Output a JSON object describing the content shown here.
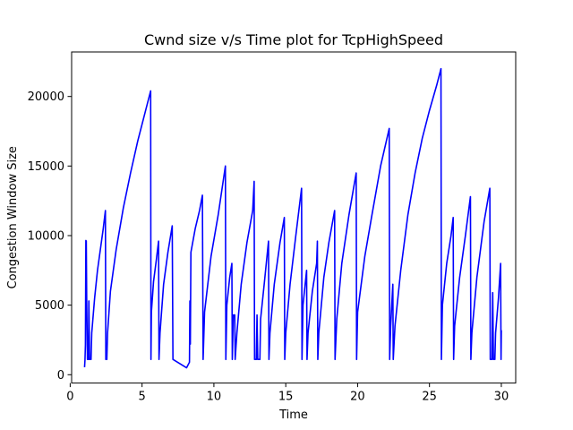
{
  "chart_data": {
    "type": "line",
    "title": "Cwnd size v/s Time plot for TcpHighSpeed",
    "xlabel": "Time",
    "ylabel": "Congestion Window Size",
    "xlim": [
      0.1,
      31.0
    ],
    "ylim": [
      -600,
      23200
    ],
    "xticks": [
      0,
      5,
      10,
      15,
      20,
      25,
      30
    ],
    "yticks": [
      0,
      5000,
      10000,
      15000,
      20000
    ],
    "grid": false,
    "series": [
      {
        "color": "#0000ff",
        "points": [
          [
            1.0,
            536
          ],
          [
            1.03,
            1072
          ],
          [
            1.06,
            2144
          ],
          [
            1.09,
            9650
          ],
          [
            1.12,
            9600
          ],
          [
            1.15,
            5300
          ],
          [
            1.2,
            1100
          ],
          [
            1.27,
            1100
          ],
          [
            1.3,
            5300
          ],
          [
            1.35,
            1100
          ],
          [
            1.45,
            1100
          ],
          [
            1.5,
            3000
          ],
          [
            1.7,
            5500
          ],
          [
            1.9,
            7500
          ],
          [
            2.1,
            9000
          ],
          [
            2.3,
            10500
          ],
          [
            2.45,
            11800
          ],
          [
            2.48,
            1100
          ],
          [
            2.55,
            1100
          ],
          [
            2.6,
            3000
          ],
          [
            2.8,
            6000
          ],
          [
            3.2,
            9000
          ],
          [
            3.7,
            12000
          ],
          [
            4.2,
            14500
          ],
          [
            4.7,
            16800
          ],
          [
            5.2,
            18800
          ],
          [
            5.6,
            20400
          ],
          [
            5.62,
            1100
          ],
          [
            5.65,
            4500
          ],
          [
            5.8,
            6700
          ],
          [
            6.0,
            8300
          ],
          [
            6.15,
            9600
          ],
          [
            6.18,
            1100
          ],
          [
            6.25,
            3000
          ],
          [
            6.5,
            6500
          ],
          [
            6.8,
            8800
          ],
          [
            7.1,
            10700
          ],
          [
            7.15,
            1100
          ],
          [
            8.1,
            500
          ],
          [
            8.3,
            900
          ],
          [
            8.33,
            5300
          ],
          [
            8.36,
            2200
          ],
          [
            8.4,
            8800
          ],
          [
            8.7,
            10500
          ],
          [
            9.0,
            11800
          ],
          [
            9.2,
            12900
          ],
          [
            9.25,
            1100
          ],
          [
            9.35,
            4500
          ],
          [
            9.8,
            8500
          ],
          [
            10.3,
            11500
          ],
          [
            10.8,
            15000
          ],
          [
            10.83,
            1100
          ],
          [
            10.9,
            5000
          ],
          [
            11.1,
            7000
          ],
          [
            11.25,
            8000
          ],
          [
            11.28,
            1100
          ],
          [
            11.35,
            4300
          ],
          [
            11.45,
            4300
          ],
          [
            11.48,
            1100
          ],
          [
            11.6,
            3000
          ],
          [
            11.9,
            6500
          ],
          [
            12.3,
            9500
          ],
          [
            12.7,
            11800
          ],
          [
            12.8,
            13900
          ],
          [
            12.83,
            1100
          ],
          [
            12.95,
            1100
          ],
          [
            13.0,
            4300
          ],
          [
            13.05,
            1100
          ],
          [
            13.2,
            1100
          ],
          [
            13.25,
            4000
          ],
          [
            13.5,
            6500
          ],
          [
            13.8,
            9600
          ],
          [
            13.83,
            1100
          ],
          [
            13.9,
            3000
          ],
          [
            14.2,
            6500
          ],
          [
            14.6,
            9500
          ],
          [
            14.9,
            11300
          ],
          [
            14.93,
            1100
          ],
          [
            15.0,
            3000
          ],
          [
            15.3,
            6500
          ],
          [
            15.7,
            10000
          ],
          [
            16.1,
            13400
          ],
          [
            16.13,
            1100
          ],
          [
            16.2,
            5000
          ],
          [
            16.45,
            7500
          ],
          [
            16.48,
            1100
          ],
          [
            16.55,
            3000
          ],
          [
            16.85,
            6000
          ],
          [
            17.15,
            8000
          ],
          [
            17.2,
            9600
          ],
          [
            17.23,
            1100
          ],
          [
            17.3,
            3000
          ],
          [
            17.65,
            7000
          ],
          [
            18.0,
            9500
          ],
          [
            18.4,
            11800
          ],
          [
            18.43,
            1100
          ],
          [
            18.55,
            4000
          ],
          [
            18.9,
            8000
          ],
          [
            19.4,
            11500
          ],
          [
            19.9,
            14500
          ],
          [
            19.93,
            1100
          ],
          [
            20.0,
            4500
          ],
          [
            20.5,
            8500
          ],
          [
            21.0,
            11500
          ],
          [
            21.6,
            15000
          ],
          [
            22.2,
            17700
          ],
          [
            22.23,
            1100
          ],
          [
            22.3,
            3500
          ],
          [
            22.45,
            6500
          ],
          [
            22.48,
            1100
          ],
          [
            22.6,
            3500
          ],
          [
            23.0,
            7500
          ],
          [
            23.5,
            11500
          ],
          [
            24.0,
            14500
          ],
          [
            24.5,
            17000
          ],
          [
            25.0,
            19000
          ],
          [
            25.5,
            20800
          ],
          [
            25.8,
            22000
          ],
          [
            25.83,
            1100
          ],
          [
            25.9,
            5000
          ],
          [
            26.2,
            8000
          ],
          [
            26.5,
            10000
          ],
          [
            26.65,
            11300
          ],
          [
            26.68,
            1100
          ],
          [
            26.75,
            3500
          ],
          [
            27.1,
            7000
          ],
          [
            27.5,
            10000
          ],
          [
            27.85,
            12800
          ],
          [
            27.88,
            1100
          ],
          [
            27.95,
            3000
          ],
          [
            28.3,
            7000
          ],
          [
            28.8,
            11000
          ],
          [
            29.2,
            13400
          ],
          [
            29.23,
            1100
          ],
          [
            29.35,
            1100
          ],
          [
            29.4,
            5900
          ],
          [
            29.45,
            1100
          ],
          [
            29.55,
            1100
          ],
          [
            29.6,
            3000
          ],
          [
            29.8,
            5500
          ],
          [
            29.95,
            8000
          ],
          [
            29.98,
            1100
          ],
          [
            30.0,
            3200
          ]
        ]
      }
    ]
  }
}
